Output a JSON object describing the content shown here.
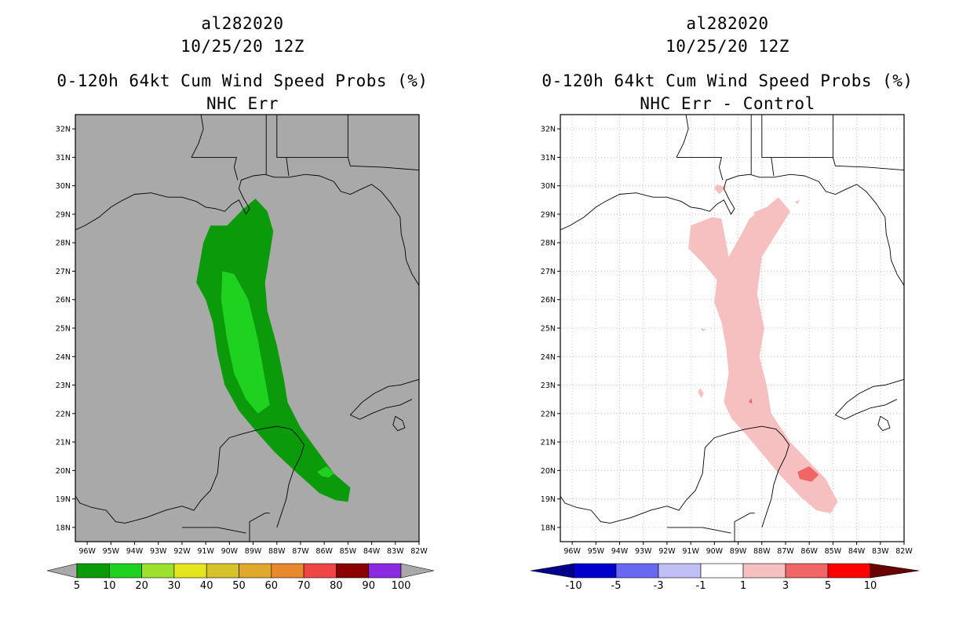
{
  "panels": [
    {
      "storm_id": "al282020",
      "datetime": "10/25/20 12Z",
      "product": "0-120h 64kt Cum Wind Speed Probs (%)",
      "subtitle": "NHC Err",
      "background": "#a9a9a9",
      "colorbar": {
        "labels": [
          "5",
          "10",
          "20",
          "30",
          "40",
          "50",
          "60",
          "70",
          "80",
          "90",
          "100"
        ],
        "colors": [
          "#0a9a0a",
          "#1fd21f",
          "#9be12d",
          "#e6e61f",
          "#d6c22a",
          "#e0a92c",
          "#e8892e",
          "#ef4545",
          "#8b0000",
          "#8a2be2"
        ]
      }
    },
    {
      "storm_id": "al282020",
      "datetime": "10/25/20 12Z",
      "product": "0-120h 64kt Cum Wind Speed Probs (%)",
      "subtitle": "NHC Err - Control",
      "background": "#ffffff",
      "colorbar": {
        "labels": [
          "-10",
          "-5",
          "-3",
          "-1",
          "1",
          "3",
          "5",
          "10"
        ],
        "colors": [
          "#0000cd",
          "#6868f0",
          "#c0c0f5",
          "#ffffff",
          "#f7c0c0",
          "#f06565",
          "#ff0000"
        ],
        "under_color": "#00008b",
        "over_color": "#6b0000"
      }
    }
  ],
  "map": {
    "lat_labels": [
      "32N",
      "31N",
      "30N",
      "29N",
      "28N",
      "27N",
      "26N",
      "25N",
      "24N",
      "23N",
      "22N",
      "21N",
      "20N",
      "19N",
      "18N"
    ],
    "lon_labels": [
      "96W",
      "95W",
      "94W",
      "93W",
      "92W",
      "91W",
      "90W",
      "89W",
      "88W",
      "87W",
      "86W",
      "85W",
      "84W",
      "83W",
      "82W"
    ]
  }
}
